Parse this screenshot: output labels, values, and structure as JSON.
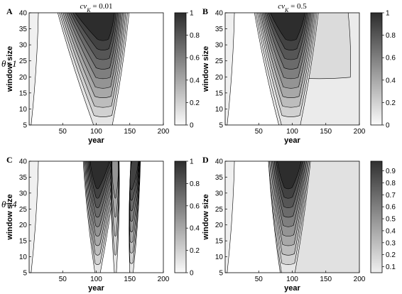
{
  "chart_data": [
    {
      "type": "heatmap",
      "panel": "A",
      "title_main": "cv",
      "title_sub": "K",
      "title_rest": " = 0.01",
      "row_label": "",
      "xlabel": "year",
      "ylabel": "window size",
      "xlim": [
        0,
        200
      ],
      "ylim": [
        5,
        40
      ],
      "xticks": [
        50,
        100,
        150,
        200
      ],
      "yticks": [
        5,
        10,
        15,
        20,
        25,
        30,
        35,
        40
      ],
      "colorbar": {
        "range": [
          0,
          1
        ],
        "ticks": [
          0,
          0.2,
          0.4,
          0.6,
          0.8,
          1
        ],
        "tick_labels": [
          "0",
          "0.2",
          "0.4",
          "0.6",
          "0.8",
          "1"
        ]
      },
      "regions": [
        {
          "x_left_at_ymin": 96,
          "x_right_at_ymin": 124,
          "x_left_at_ymax": 40,
          "x_right_at_ymax": 150,
          "max_value": 1
        },
        {
          "x_left_at_ymin": 0,
          "x_right_at_ymin": 3,
          "x_left_at_ymax": 0,
          "x_right_at_ymax": 14,
          "max_value": 0.05
        }
      ]
    },
    {
      "type": "heatmap",
      "panel": "B",
      "title_main": "cv",
      "title_sub": "K",
      "title_rest": " = 0.5",
      "row_label": "",
      "xlabel": "year",
      "ylabel": "window size",
      "xlim": [
        0,
        200
      ],
      "ylim": [
        5,
        40
      ],
      "xticks": [
        50,
        100,
        150,
        200
      ],
      "yticks": [
        5,
        10,
        15,
        20,
        25,
        30,
        35,
        40
      ],
      "colorbar": {
        "range": [
          0,
          1
        ],
        "ticks": [
          0,
          0.2,
          0.4,
          0.6,
          0.8,
          1
        ],
        "tick_labels": [
          "0",
          "0.2",
          "0.4",
          "0.6",
          "0.8",
          "1"
        ]
      },
      "regions": [
        {
          "x_left_at_ymin": 80,
          "x_right_at_ymin": 200,
          "x_left_at_ymax": 42,
          "x_right_at_ymax": 200,
          "max_value": 0.15
        },
        {
          "x_left_at_ymin": 84,
          "x_right_at_ymin": 112,
          "x_left_at_ymax": 44,
          "x_right_at_ymax": 140,
          "max_value": 1
        },
        {
          "x_left_at_ymin": 0,
          "x_right_at_ymin": 3,
          "x_left_at_ymax": 0,
          "x_right_at_ymax": 14,
          "max_value": 0.05
        }
      ]
    },
    {
      "type": "heatmap",
      "panel": "C",
      "title_main": "",
      "title_sub": "",
      "title_rest": "",
      "row_label": "θ=4",
      "xlabel": "year",
      "ylabel": "window size",
      "xlim": [
        0,
        200
      ],
      "ylim": [
        5,
        40
      ],
      "xticks": [
        50,
        100,
        150,
        200
      ],
      "yticks": [
        5,
        10,
        15,
        20,
        25,
        30,
        35,
        40
      ],
      "colorbar": {
        "range": [
          0,
          1
        ],
        "ticks": [
          0,
          0.2,
          0.4,
          0.6,
          0.8,
          1
        ],
        "tick_labels": [
          "0",
          "0.2",
          "0.4",
          "0.6",
          "0.8",
          "1"
        ]
      },
      "regions": [
        {
          "x_left_at_ymin": 98,
          "x_right_at_ymin": 106,
          "x_left_at_ymax": 80,
          "x_right_at_ymax": 132,
          "max_value": 1
        },
        {
          "x_left_at_ymin": 150,
          "x_right_at_ymin": 155,
          "x_left_at_ymax": 152,
          "x_right_at_ymax": 166,
          "max_value": 0.9
        },
        {
          "x_left_at_ymin": 127,
          "x_right_at_ymin": 130,
          "x_left_at_ymax": 122,
          "x_right_at_ymax": 134,
          "max_value": 0.5
        },
        {
          "x_left_at_ymin": 0,
          "x_right_at_ymin": 3,
          "x_left_at_ymax": 0,
          "x_right_at_ymax": 14,
          "max_value": 0.05
        }
      ]
    },
    {
      "type": "heatmap",
      "panel": "D",
      "title_main": "",
      "title_sub": "",
      "title_rest": "",
      "row_label": "",
      "xlabel": "year",
      "ylabel": "window size",
      "xlim": [
        0,
        200
      ],
      "ylim": [
        5,
        40
      ],
      "xticks": [
        50,
        100,
        150,
        200
      ],
      "yticks": [
        5,
        10,
        15,
        20,
        25,
        30,
        35,
        40
      ],
      "colorbar": {
        "range": [
          0.05,
          0.98
        ],
        "ticks": [
          0.1,
          0.2,
          0.3,
          0.4,
          0.5,
          0.6,
          0.7,
          0.8,
          0.9
        ],
        "tick_labels": [
          "0.1",
          "0.2",
          "0.3",
          "0.4",
          "0.5",
          "0.6",
          "0.7",
          "0.8",
          "0.9"
        ]
      },
      "regions": [
        {
          "x_left_at_ymin": 82,
          "x_right_at_ymin": 200,
          "x_left_at_ymax": 64,
          "x_right_at_ymax": 200,
          "max_value": 0.12
        },
        {
          "x_left_at_ymin": 84,
          "x_right_at_ymin": 104,
          "x_left_at_ymax": 64,
          "x_right_at_ymax": 128,
          "max_value": 1
        },
        {
          "x_left_at_ymin": 0,
          "x_right_at_ymin": 3,
          "x_left_at_ymax": 0,
          "x_right_at_ymax": 14,
          "max_value": 0.05
        }
      ]
    }
  ],
  "row_labels": [
    "θ=1",
    "θ=4"
  ]
}
